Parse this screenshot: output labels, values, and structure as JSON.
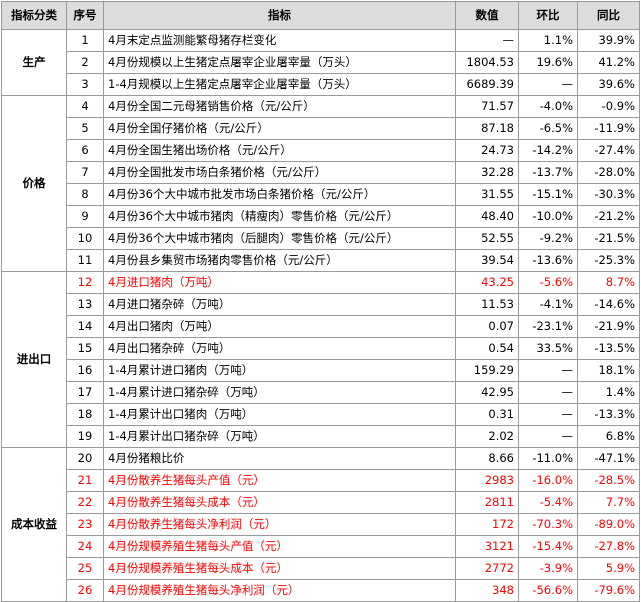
{
  "headers": [
    "指标分类",
    "序号",
    "指标",
    "数值",
    "环比",
    "同比"
  ],
  "groups": [
    {
      "category": "生产",
      "rows": [
        {
          "seq": "1",
          "name": "4月末定点监测能繁母猪存栏变化",
          "value": "—",
          "mom": "1.1%",
          "yoy": "39.9%",
          "red": false
        },
        {
          "seq": "2",
          "name": "4月份规模以上生猪定点屠宰企业屠宰量（万头）",
          "value": "1804.53",
          "mom": "19.6%",
          "yoy": "41.2%",
          "red": false
        },
        {
          "seq": "3",
          "name": "1-4月规模以上生猪定点屠宰企业屠宰量（万头）",
          "value": "6689.39",
          "mom": "—",
          "yoy": "39.6%",
          "red": false
        }
      ]
    },
    {
      "category": "价格",
      "rows": [
        {
          "seq": "4",
          "name": "4月份全国二元母猪销售价格（元/公斤）",
          "value": "71.57",
          "mom": "-4.0%",
          "yoy": "-0.9%",
          "red": false
        },
        {
          "seq": "5",
          "name": "4月份全国仔猪价格（元/公斤）",
          "value": "87.18",
          "mom": "-6.5%",
          "yoy": "-11.9%",
          "red": false
        },
        {
          "seq": "6",
          "name": "4月份全国生猪出场价格（元/公斤）",
          "value": "24.73",
          "mom": "-14.2%",
          "yoy": "-27.4%",
          "red": false
        },
        {
          "seq": "7",
          "name": "4月份全国批发市场白条猪价格（元/公斤）",
          "value": "32.28",
          "mom": "-13.7%",
          "yoy": "-28.0%",
          "red": false
        },
        {
          "seq": "8",
          "name": "4月份36个大中城市批发市场白条猪价格（元/公斤）",
          "value": "31.55",
          "mom": "-15.1%",
          "yoy": "-30.3%",
          "red": false
        },
        {
          "seq": "9",
          "name": "4月份36个大中城市猪肉（精瘦肉）零售价格（元/公斤）",
          "value": "48.40",
          "mom": "-10.0%",
          "yoy": "-21.2%",
          "red": false
        },
        {
          "seq": "10",
          "name": "4月份36个大中城市猪肉（后腿肉）零售价格（元/公斤）",
          "value": "52.55",
          "mom": "-9.2%",
          "yoy": "-21.5%",
          "red": false
        },
        {
          "seq": "11",
          "name": "4月份县乡集贸市场猪肉零售价格（元/公斤）",
          "value": "39.54",
          "mom": "-13.6%",
          "yoy": "-25.3%",
          "red": false
        }
      ]
    },
    {
      "category": "进出口",
      "rows": [
        {
          "seq": "12",
          "name": "4月进口猪肉（万吨）",
          "value": "43.25",
          "mom": "-5.6%",
          "yoy": "8.7%",
          "red": true
        },
        {
          "seq": "13",
          "name": "4月进口猪杂碎（万吨）",
          "value": "11.53",
          "mom": "-4.1%",
          "yoy": "-14.6%",
          "red": false
        },
        {
          "seq": "14",
          "name": "4月出口猪肉（万吨）",
          "value": "0.07",
          "mom": "-23.1%",
          "yoy": "-21.9%",
          "red": false
        },
        {
          "seq": "15",
          "name": "4月出口猪杂碎（万吨）",
          "value": "0.54",
          "mom": "33.5%",
          "yoy": "-13.5%",
          "red": false
        },
        {
          "seq": "16",
          "name": "1-4月累计进口猪肉（万吨）",
          "value": "159.29",
          "mom": "—",
          "yoy": "18.1%",
          "red": false
        },
        {
          "seq": "17",
          "name": "1-4月累计进口猪杂碎（万吨）",
          "value": "42.95",
          "mom": "—",
          "yoy": "1.4%",
          "red": false
        },
        {
          "seq": "18",
          "name": "1-4月累计出口猪肉（万吨）",
          "value": "0.31",
          "mom": "—",
          "yoy": "-13.3%",
          "red": false
        },
        {
          "seq": "19",
          "name": "1-4月累计出口猪杂碎（万吨）",
          "value": "2.02",
          "mom": "—",
          "yoy": "6.8%",
          "red": false
        }
      ]
    },
    {
      "category": "成本收益",
      "rows": [
        {
          "seq": "20",
          "name": "4月份猪粮比价",
          "value": "8.66",
          "mom": "-11.0%",
          "yoy": "-47.1%",
          "red": false
        },
        {
          "seq": "21",
          "name": "4月份散养生猪每头产值（元）",
          "value": "2983",
          "mom": "-16.0%",
          "yoy": "-28.5%",
          "red": true
        },
        {
          "seq": "22",
          "name": "4月份散养生猪每头成本（元）",
          "value": "2811",
          "mom": "-5.4%",
          "yoy": "7.7%",
          "red": true
        },
        {
          "seq": "23",
          "name": "4月份散养生猪每头净利润（元）",
          "value": "172",
          "mom": "-70.3%",
          "yoy": "-89.0%",
          "red": true
        },
        {
          "seq": "24",
          "name": "4月份规模养殖生猪每头产值（元）",
          "value": "3121",
          "mom": "-15.4%",
          "yoy": "-27.8%",
          "red": true
        },
        {
          "seq": "25",
          "name": "4月份规模养殖生猪每头成本（元）",
          "value": "2772",
          "mom": "-3.9%",
          "yoy": "5.9%",
          "red": true
        },
        {
          "seq": "26",
          "name": "4月份规模养殖生猪每头净利润（元）",
          "value": "348",
          "mom": "-56.6%",
          "yoy": "-79.6%",
          "red": true
        }
      ]
    }
  ]
}
